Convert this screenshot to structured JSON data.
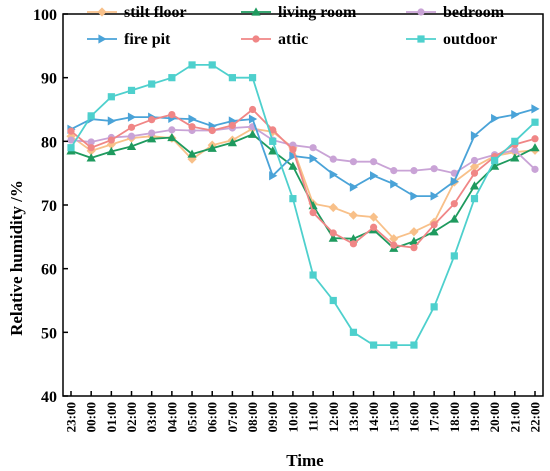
{
  "chart_data": {
    "type": "line",
    "xlabel": "Time",
    "ylabel": "Relative humidity /%",
    "ylim": [
      40,
      100
    ],
    "yticks": [
      40,
      50,
      60,
      70,
      80,
      90,
      100
    ],
    "categories": [
      "23:00",
      "00:00",
      "01:00",
      "02:00",
      "03:00",
      "04:00",
      "05:00",
      "06:00",
      "07:00",
      "08:00",
      "09:00",
      "10:00",
      "11:00",
      "12:00",
      "13:00",
      "14:00",
      "15:00",
      "16:00",
      "17:00",
      "18:00",
      "19:00",
      "20:00",
      "21:00",
      "22:00"
    ],
    "legend_position": "top",
    "grid": false,
    "series": [
      {
        "name": "stilt floor",
        "color": "#f8c089",
        "marker": "diamond",
        "values": [
          80.8,
          78.5,
          79.5,
          80.5,
          80.8,
          80.5,
          77.2,
          79.4,
          80.2,
          82.0,
          81.5,
          79.0,
          70.2,
          69.6,
          68.4,
          68.1,
          64.7,
          65.8,
          67.3,
          73.6,
          76.0,
          77.7,
          78.3,
          78.6
        ]
      },
      {
        "name": "living room",
        "color": "#1e9a5e",
        "marker": "triangle",
        "values": [
          78.5,
          77.4,
          78.4,
          79.2,
          80.4,
          80.6,
          78.0,
          78.9,
          79.8,
          81.1,
          78.5,
          76.1,
          69.9,
          64.8,
          64.7,
          66.1,
          63.2,
          64.3,
          65.8,
          67.8,
          73.0,
          76.1,
          77.4,
          79.0
        ]
      },
      {
        "name": "bedroom",
        "color": "#c9a3d6",
        "marker": "circle",
        "values": [
          80.2,
          79.9,
          80.6,
          80.8,
          81.3,
          81.8,
          81.7,
          81.7,
          82.1,
          82.3,
          80.2,
          79.4,
          79.0,
          77.2,
          76.8,
          76.8,
          75.4,
          75.4,
          75.7,
          75.0,
          77.0,
          77.9,
          78.6,
          75.6
        ]
      },
      {
        "name": "fire pit",
        "color": "#4aa3d8",
        "marker": "triangle-right",
        "values": [
          81.9,
          83.5,
          83.2,
          83.8,
          83.8,
          83.6,
          83.5,
          82.4,
          83.2,
          83.5,
          74.6,
          77.7,
          77.3,
          74.8,
          72.8,
          74.6,
          73.3,
          71.4,
          71.4,
          73.7,
          80.9,
          83.6,
          84.2,
          85.1
        ]
      },
      {
        "name": "attic",
        "color": "#f08686",
        "marker": "circle",
        "values": [
          81.6,
          79.0,
          80.2,
          82.2,
          83.4,
          84.2,
          82.3,
          81.7,
          82.5,
          85.0,
          81.8,
          78.7,
          68.8,
          65.6,
          63.9,
          66.5,
          63.7,
          63.3,
          66.9,
          70.2,
          75.0,
          77.6,
          79.5,
          80.4
        ]
      },
      {
        "name": "outdoor",
        "color": "#4ed0cd",
        "marker": "square",
        "values": [
          79.0,
          84.0,
          87.0,
          88.0,
          89.0,
          90.0,
          92.0,
          92.0,
          90.0,
          90.0,
          80.0,
          71.0,
          59.0,
          55.0,
          50.0,
          48.0,
          48.0,
          48.0,
          54.0,
          62.0,
          71.0,
          77.0,
          80.0,
          83.0
        ]
      }
    ]
  }
}
